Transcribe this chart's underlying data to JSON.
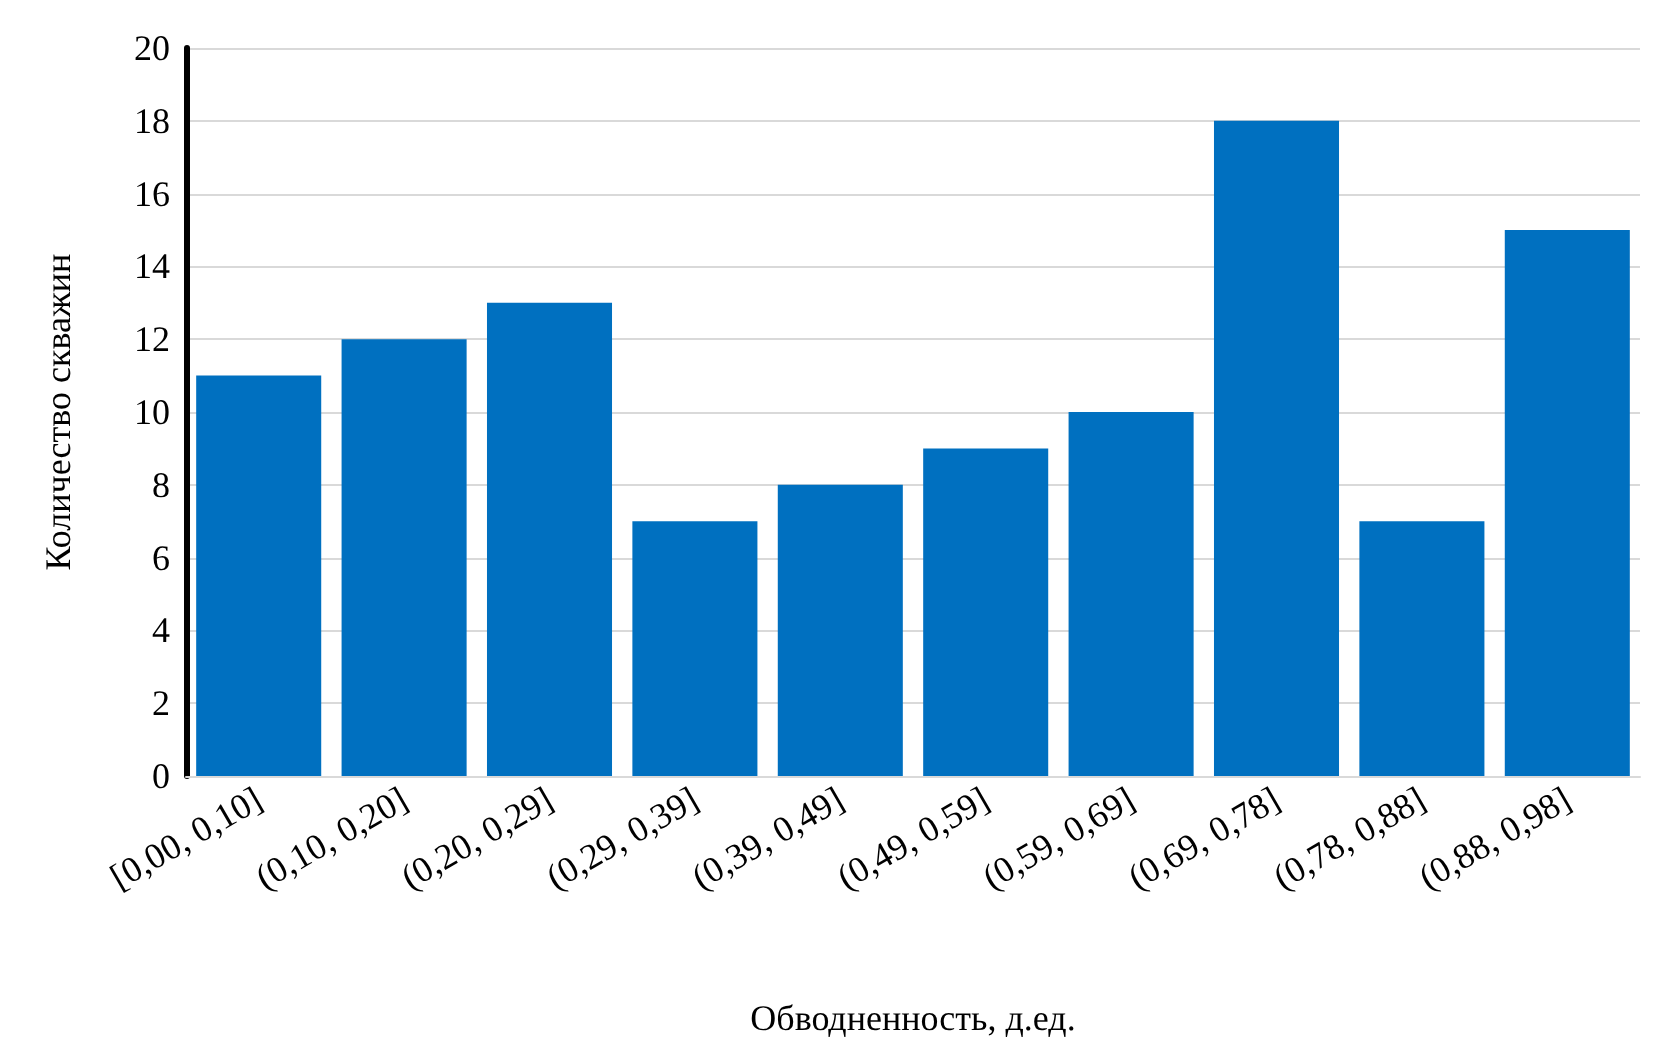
{
  "chart_data": {
    "type": "bar",
    "xlabel": "Обводненность, д.ед.",
    "ylabel": "Количество скважин",
    "categories": [
      "[0,00, 0,10]",
      "(0,10, 0,20]",
      "(0,20, 0,29]",
      "(0,29, 0,39]",
      "(0,39, 0,49]",
      "(0,49, 0,59]",
      "(0,59, 0,69]",
      "(0,69, 0,78]",
      "(0,78, 0,88]",
      "(0,88, 0,98]"
    ],
    "values": [
      11,
      12,
      13,
      7,
      8,
      9,
      10,
      18,
      7,
      15
    ],
    "color": "#0070c0",
    "ylim": [
      0,
      20
    ],
    "yticks": [
      0,
      2,
      4,
      6,
      8,
      10,
      12,
      14,
      16,
      18,
      20
    ],
    "grid": "y"
  }
}
